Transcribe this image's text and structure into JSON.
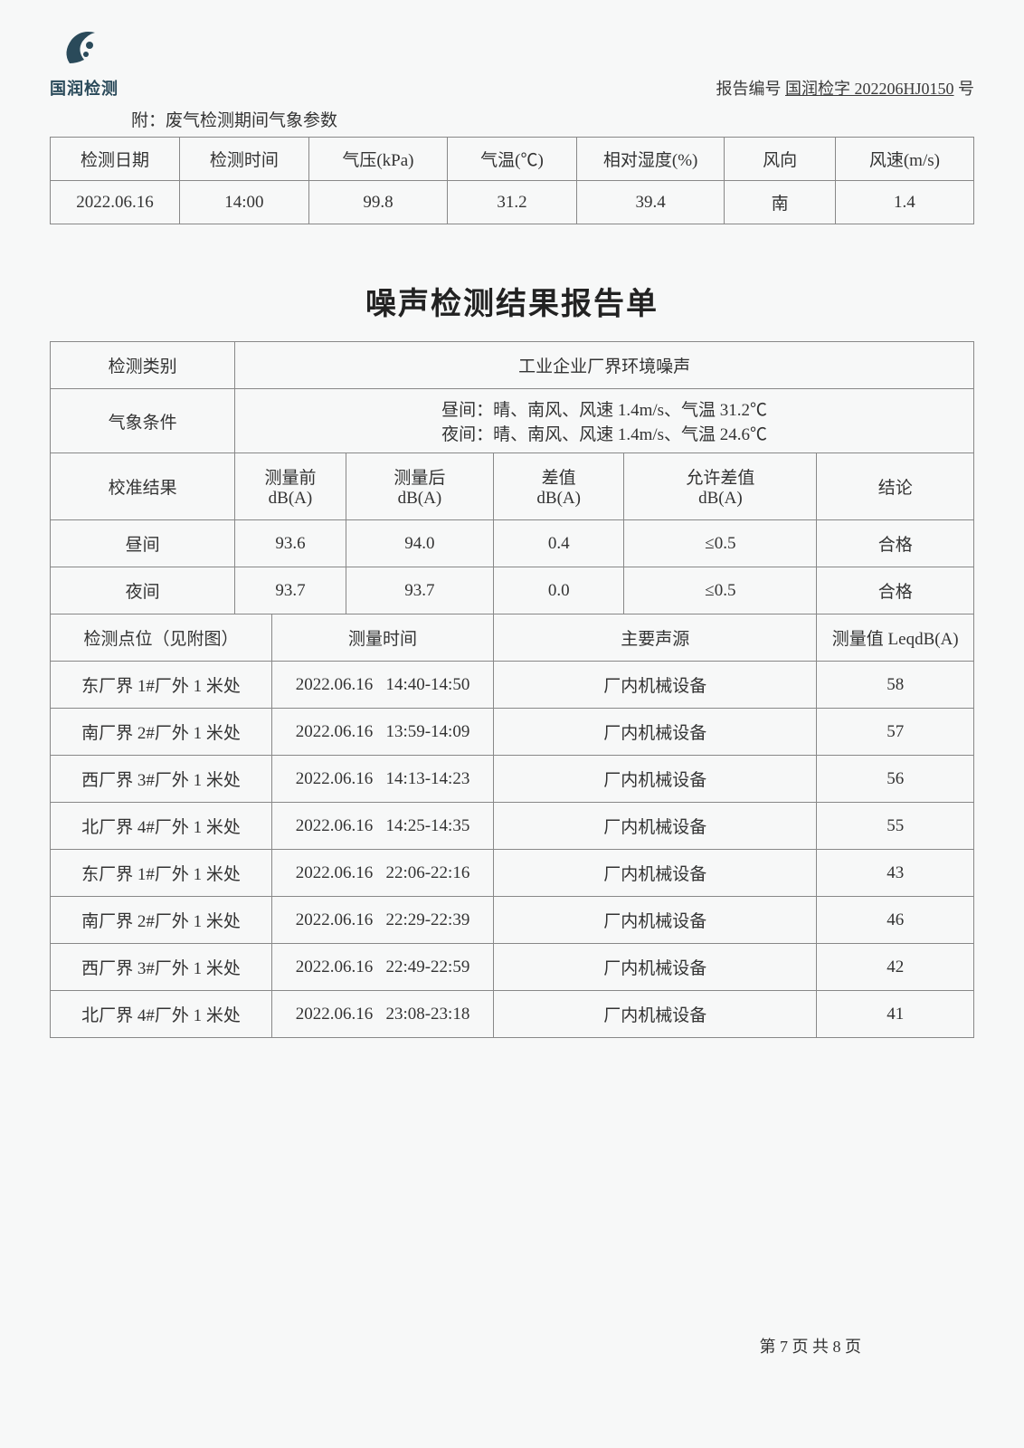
{
  "logo_text": "国润检测",
  "report_no_label": "报告编号",
  "report_no_value": "国润检字 202206HJ0150",
  "report_no_suffix": " 号",
  "attach_title": "附：废气检测期间气象参数",
  "meteor": {
    "headers": [
      "检测日期",
      "检测时间",
      "气压(kPa)",
      "气温(℃)",
      "相对湿度(%)",
      "风向",
      "风速(m/s)"
    ],
    "row": [
      "2022.06.16",
      "14:00",
      "99.8",
      "31.2",
      "39.4",
      "南",
      "1.4"
    ]
  },
  "main_title": "噪声检测结果报告单",
  "noise": {
    "cat_label": "检测类别",
    "cat_value": "工业企业厂界环境噪声",
    "weather_label": "气象条件",
    "weather_day": "昼间：晴、南风、风速 1.4m/s、气温 31.2℃",
    "weather_night": "夜间：晴、南风、风速 1.4m/s、气温 24.6℃",
    "calib_label": "校准结果",
    "calib_headers": [
      "测量前\ndB(A)",
      "测量后\ndB(A)",
      "差值\ndB(A)",
      "允许差值\ndB(A)",
      "结论"
    ],
    "calib_rows": [
      {
        "period": "昼间",
        "before": "93.6",
        "after": "94.0",
        "diff": "0.4",
        "allow": "≤0.5",
        "result": "合格"
      },
      {
        "period": "夜间",
        "before": "93.7",
        "after": "93.7",
        "diff": "0.0",
        "allow": "≤0.5",
        "result": "合格"
      }
    ],
    "point_header": "检测点位（见附图）",
    "time_header": "测量时间",
    "source_header": "主要声源",
    "value_header": "测量值 LeqdB(A)",
    "rows": [
      {
        "point": "东厂界 1#厂外 1 米处",
        "date": "2022.06.16",
        "time": "14:40-14:50",
        "source": "厂内机械设备",
        "val": "58"
      },
      {
        "point": "南厂界 2#厂外 1 米处",
        "date": "2022.06.16",
        "time": "13:59-14:09",
        "source": "厂内机械设备",
        "val": "57"
      },
      {
        "point": "西厂界 3#厂外 1 米处",
        "date": "2022.06.16",
        "time": "14:13-14:23",
        "source": "厂内机械设备",
        "val": "56"
      },
      {
        "point": "北厂界 4#厂外 1 米处",
        "date": "2022.06.16",
        "time": "14:25-14:35",
        "source": "厂内机械设备",
        "val": "55"
      },
      {
        "point": "东厂界 1#厂外 1 米处",
        "date": "2022.06.16",
        "time": "22:06-22:16",
        "source": "厂内机械设备",
        "val": "43"
      },
      {
        "point": "南厂界 2#厂外 1 米处",
        "date": "2022.06.16",
        "time": "22:29-22:39",
        "source": "厂内机械设备",
        "val": "46"
      },
      {
        "point": "西厂界 3#厂外 1 米处",
        "date": "2022.06.16",
        "time": "22:49-22:59",
        "source": "厂内机械设备",
        "val": "42"
      },
      {
        "point": "北厂界 4#厂外 1 米处",
        "date": "2022.06.16",
        "time": "23:08-23:18",
        "source": "厂内机械设备",
        "val": "41"
      }
    ]
  },
  "footer": "第 7 页 共 8 页",
  "colors": {
    "border": "#888",
    "text": "#333",
    "logo": "#2a4a5a",
    "bg": "#f7f8f8"
  }
}
